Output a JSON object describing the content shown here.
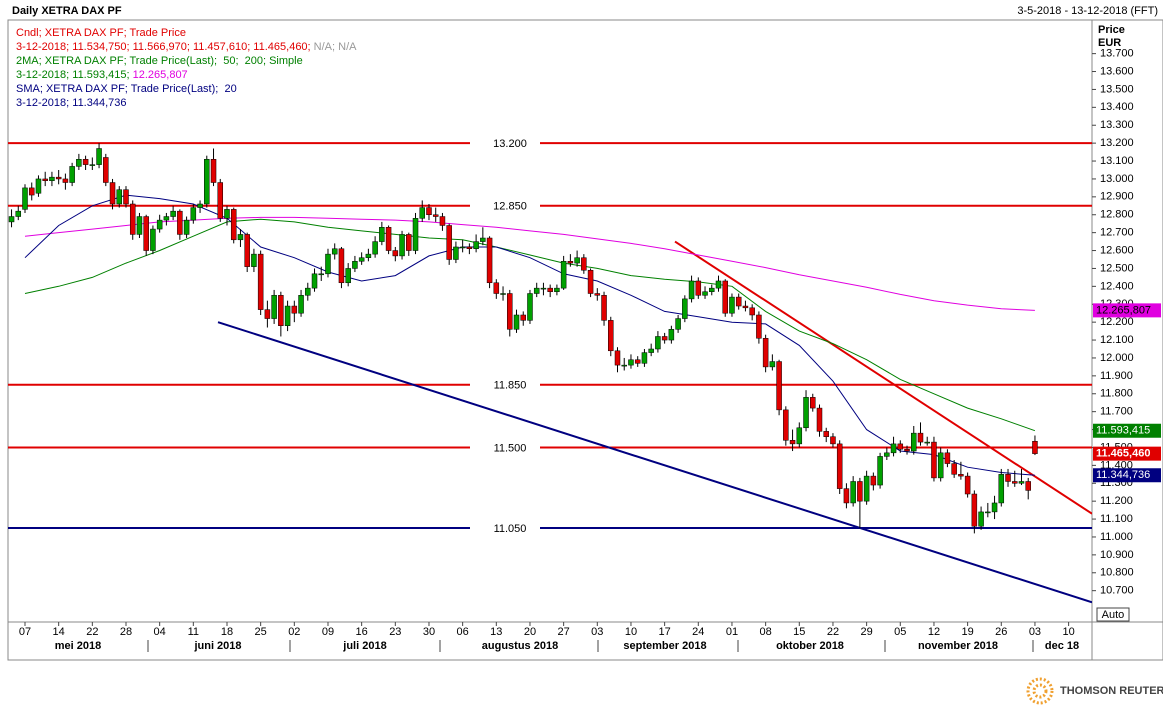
{
  "chart_data": {
    "type": "candlestick",
    "title": "Daily XETRA DAX PF",
    "date_range": "3-5-2018 - 13-12-2018 (FFT)",
    "y_axis_title": [
      "Price",
      "EUR"
    ],
    "auto_label": "Auto",
    "brand": "THOMSON REUTERS",
    "legend": [
      {
        "parts": [
          {
            "text": "Cndl; XETRA DAX PF; Trade Price",
            "color": "#e00000"
          }
        ]
      },
      {
        "parts": [
          {
            "text": "3-12-2018; 11.534,750; 11.566,970; 11.457,610; 11.465,460; ",
            "color": "#e00000"
          },
          {
            "text": "N/A; N/A",
            "color": "#999999"
          }
        ]
      },
      {
        "parts": [
          {
            "text": "2MA; XETRA DAX PF; Trade Price(Last);  50;  200; Simple",
            "color": "#008000"
          }
        ]
      },
      {
        "parts": [
          {
            "text": "3-12-2018; 11.593,415; ",
            "color": "#008000"
          },
          {
            "text": "12.265,807",
            "color": "#e000e0"
          }
        ]
      },
      {
        "parts": [
          {
            "text": "SMA; XETRA DAX PF; Trade Price(Last);  20",
            "color": "#000080"
          }
        ]
      },
      {
        "parts": [
          {
            "text": "3-12-2018; 11.344,736",
            "color": "#000080"
          }
        ]
      }
    ],
    "x_day_labels": [
      "07",
      "14",
      "22",
      "28",
      "04",
      "11",
      "18",
      "25",
      "02",
      "09",
      "16",
      "23",
      "30",
      "06",
      "13",
      "20",
      "27",
      "03",
      "10",
      "17",
      "24",
      "01",
      "08",
      "15",
      "22",
      "29",
      "05",
      "12",
      "19",
      "26",
      "03",
      "10"
    ],
    "x_month_labels": [
      "mei 2018",
      "juni 2018",
      "juli 2018",
      "augustus 2018",
      "september 2018",
      "oktober 2018",
      "november 2018",
      "dec 18"
    ],
    "ylim": [
      10525,
      13832
    ],
    "yticks": [
      {
        "value": 10700,
        "label": "10.700"
      },
      {
        "value": 10800,
        "label": "10.800"
      },
      {
        "value": 10900,
        "label": "10.900"
      },
      {
        "value": 11000,
        "label": "11.000"
      },
      {
        "value": 11100,
        "label": "11.100"
      },
      {
        "value": 11200,
        "label": "11.200"
      },
      {
        "value": 11300,
        "label": "11.300"
      },
      {
        "value": 11400,
        "label": "11.400"
      },
      {
        "value": 11500,
        "label": "11.500"
      },
      {
        "value": 11600,
        "label": "11.600"
      },
      {
        "value": 11700,
        "label": "11.700"
      },
      {
        "value": 11800,
        "label": "11.800"
      },
      {
        "value": 11900,
        "label": "11.900"
      },
      {
        "value": 12000,
        "label": "12.000"
      },
      {
        "value": 12100,
        "label": "12.100"
      },
      {
        "value": 12200,
        "label": "12.200"
      },
      {
        "value": 12300,
        "label": "12.300"
      },
      {
        "value": 12400,
        "label": "12.400"
      },
      {
        "value": 12500,
        "label": "12.500"
      },
      {
        "value": 12600,
        "label": "12.600"
      },
      {
        "value": 12700,
        "label": "12.700"
      },
      {
        "value": 12800,
        "label": "12.800"
      },
      {
        "value": 12900,
        "label": "12.900"
      },
      {
        "value": 13000,
        "label": "13.000"
      },
      {
        "value": 13100,
        "label": "13.100"
      },
      {
        "value": 13200,
        "label": "13.200"
      },
      {
        "value": 13300,
        "label": "13.300"
      },
      {
        "value": 13400,
        "label": "13.400"
      },
      {
        "value": 13500,
        "label": "13.500"
      },
      {
        "value": 13600,
        "label": "13.600"
      },
      {
        "value": 13700,
        "label": "13.700"
      }
    ],
    "up_color": "#00a000",
    "down_color": "#e00000",
    "ohlc": [
      [
        12760,
        12830,
        12730,
        12790
      ],
      [
        12790,
        12850,
        12770,
        12820
      ],
      [
        12830,
        12970,
        12810,
        12950
      ],
      [
        12950,
        12980,
        12880,
        12910
      ],
      [
        12920,
        13020,
        12900,
        13000
      ],
      [
        13000,
        13040,
        12960,
        12990
      ],
      [
        12990,
        13040,
        12960,
        13010
      ],
      [
        13010,
        13050,
        12970,
        13000
      ],
      [
        13000,
        13030,
        12940,
        12980
      ],
      [
        12980,
        13090,
        12960,
        13070
      ],
      [
        13070,
        13140,
        13050,
        13110
      ],
      [
        13110,
        13130,
        13050,
        13080
      ],
      [
        13080,
        13120,
        13050,
        13080
      ],
      [
        13080,
        13200,
        13060,
        13170
      ],
      [
        13120,
        13140,
        12960,
        12980
      ],
      [
        12980,
        13000,
        12830,
        12860
      ],
      [
        12860,
        12960,
        12840,
        12940
      ],
      [
        12940,
        12960,
        12840,
        12860
      ],
      [
        12860,
        12880,
        12660,
        12690
      ],
      [
        12690,
        12810,
        12670,
        12790
      ],
      [
        12790,
        12800,
        12570,
        12600
      ],
      [
        12600,
        12740,
        12580,
        12720
      ],
      [
        12720,
        12800,
        12700,
        12770
      ],
      [
        12770,
        12810,
        12740,
        12790
      ],
      [
        12790,
        12850,
        12770,
        12820
      ],
      [
        12820,
        12830,
        12660,
        12690
      ],
      [
        12690,
        12790,
        12670,
        12770
      ],
      [
        12770,
        12860,
        12750,
        12840
      ],
      [
        12840,
        12880,
        12810,
        12860
      ],
      [
        12860,
        13130,
        12840,
        13110
      ],
      [
        13110,
        13170,
        12960,
        12980
      ],
      [
        12980,
        13000,
        12760,
        12780
      ],
      [
        12780,
        12850,
        12740,
        12830
      ],
      [
        12830,
        12840,
        12640,
        12660
      ],
      [
        12660,
        12720,
        12620,
        12690
      ],
      [
        12690,
        12700,
        12480,
        12510
      ],
      [
        12510,
        12610,
        12480,
        12580
      ],
      [
        12580,
        12600,
        12240,
        12270
      ],
      [
        12270,
        12320,
        12170,
        12220
      ],
      [
        12220,
        12380,
        12190,
        12350
      ],
      [
        12350,
        12370,
        12120,
        12180
      ],
      [
        12180,
        12320,
        12150,
        12290
      ],
      [
        12290,
        12320,
        12200,
        12250
      ],
      [
        12250,
        12380,
        12230,
        12350
      ],
      [
        12350,
        12420,
        12320,
        12390
      ],
      [
        12390,
        12500,
        12370,
        12470
      ],
      [
        12470,
        12510,
        12430,
        12470
      ],
      [
        12470,
        12610,
        12450,
        12580
      ],
      [
        12580,
        12640,
        12550,
        12610
      ],
      [
        12610,
        12620,
        12390,
        12420
      ],
      [
        12420,
        12530,
        12400,
        12500
      ],
      [
        12500,
        12570,
        12480,
        12540
      ],
      [
        12540,
        12590,
        12520,
        12560
      ],
      [
        12560,
        12610,
        12540,
        12580
      ],
      [
        12580,
        12680,
        12560,
        12650
      ],
      [
        12650,
        12760,
        12630,
        12730
      ],
      [
        12730,
        12740,
        12580,
        12600
      ],
      [
        12600,
        12620,
        12540,
        12570
      ],
      [
        12570,
        12710,
        12550,
        12690
      ],
      [
        12690,
        12700,
        12570,
        12600
      ],
      [
        12600,
        12810,
        12580,
        12780
      ],
      [
        12780,
        12880,
        12760,
        12840
      ],
      [
        12840,
        12860,
        12770,
        12800
      ],
      [
        12800,
        12840,
        12760,
        12790
      ],
      [
        12790,
        12810,
        12710,
        12740
      ],
      [
        12740,
        12750,
        12520,
        12550
      ],
      [
        12550,
        12650,
        12530,
        12620
      ],
      [
        12620,
        12660,
        12590,
        12620
      ],
      [
        12620,
        12640,
        12580,
        12610
      ],
      [
        12610,
        12690,
        12590,
        12650
      ],
      [
        12650,
        12730,
        12630,
        12670
      ],
      [
        12670,
        12680,
        12390,
        12420
      ],
      [
        12420,
        12440,
        12330,
        12360
      ],
      [
        12360,
        12400,
        12320,
        12360
      ],
      [
        12360,
        12380,
        12120,
        12160
      ],
      [
        12160,
        12270,
        12140,
        12240
      ],
      [
        12240,
        12260,
        12180,
        12210
      ],
      [
        12210,
        12380,
        12190,
        12360
      ],
      [
        12360,
        12420,
        12340,
        12390
      ],
      [
        12390,
        12420,
        12350,
        12390
      ],
      [
        12390,
        12410,
        12340,
        12370
      ],
      [
        12370,
        12410,
        12350,
        12390
      ],
      [
        12390,
        12570,
        12380,
        12540
      ],
      [
        12540,
        12580,
        12510,
        12530
      ],
      [
        12530,
        12600,
        12510,
        12560
      ],
      [
        12560,
        12580,
        12470,
        12490
      ],
      [
        12490,
        12500,
        12340,
        12360
      ],
      [
        12360,
        12390,
        12320,
        12350
      ],
      [
        12350,
        12370,
        12180,
        12210
      ],
      [
        12210,
        12230,
        12010,
        12040
      ],
      [
        12040,
        12060,
        11920,
        11960
      ],
      [
        11960,
        12000,
        11930,
        11960
      ],
      [
        11960,
        12020,
        11940,
        11990
      ],
      [
        11990,
        12010,
        11950,
        11970
      ],
      [
        11970,
        12050,
        11950,
        12030
      ],
      [
        12030,
        12080,
        12010,
        12050
      ],
      [
        12050,
        12150,
        12030,
        12120
      ],
      [
        12120,
        12140,
        12080,
        12100
      ],
      [
        12100,
        12180,
        12080,
        12160
      ],
      [
        12160,
        12240,
        12140,
        12220
      ],
      [
        12220,
        12350,
        12200,
        12330
      ],
      [
        12330,
        12460,
        12310,
        12430
      ],
      [
        12430,
        12450,
        12330,
        12350
      ],
      [
        12350,
        12400,
        12330,
        12370
      ],
      [
        12370,
        12410,
        12350,
        12390
      ],
      [
        12390,
        12460,
        12370,
        12430
      ],
      [
        12430,
        12440,
        12230,
        12250
      ],
      [
        12250,
        12360,
        12230,
        12340
      ],
      [
        12340,
        12360,
        12270,
        12290
      ],
      [
        12290,
        12320,
        12260,
        12280
      ],
      [
        12280,
        12300,
        12210,
        12240
      ],
      [
        12240,
        12260,
        12080,
        12110
      ],
      [
        12110,
        12130,
        11920,
        11950
      ],
      [
        11950,
        12020,
        11930,
        11980
      ],
      [
        11980,
        11990,
        11680,
        11710
      ],
      [
        11710,
        11730,
        11510,
        11540
      ],
      [
        11540,
        11600,
        11480,
        11520
      ],
      [
        11520,
        11640,
        11500,
        11610
      ],
      [
        11610,
        11820,
        11590,
        11780
      ],
      [
        11780,
        11800,
        11700,
        11720
      ],
      [
        11720,
        11740,
        11560,
        11590
      ],
      [
        11590,
        11610,
        11530,
        11560
      ],
      [
        11560,
        11580,
        11500,
        11520
      ],
      [
        11520,
        11540,
        11240,
        11270
      ],
      [
        11270,
        11300,
        11160,
        11190
      ],
      [
        11190,
        11340,
        11170,
        11310
      ],
      [
        11310,
        11330,
        11050,
        11200
      ],
      [
        11200,
        11370,
        11180,
        11340
      ],
      [
        11340,
        11360,
        11260,
        11290
      ],
      [
        11290,
        11470,
        11270,
        11450
      ],
      [
        11450,
        11500,
        11430,
        11470
      ],
      [
        11470,
        11560,
        11450,
        11520
      ],
      [
        11520,
        11540,
        11470,
        11490
      ],
      [
        11490,
        11510,
        11460,
        11480
      ],
      [
        11480,
        11620,
        11460,
        11580
      ],
      [
        11580,
        11640,
        11510,
        11530
      ],
      [
        11530,
        11560,
        11510,
        11530
      ],
      [
        11530,
        11560,
        11310,
        11330
      ],
      [
        11330,
        11500,
        11310,
        11470
      ],
      [
        11470,
        11490,
        11390,
        11410
      ],
      [
        11410,
        11430,
        11330,
        11350
      ],
      [
        11350,
        11420,
        11320,
        11340
      ],
      [
        11340,
        11360,
        11220,
        11240
      ],
      [
        11240,
        11260,
        11020,
        11060
      ],
      [
        11060,
        11170,
        11040,
        11140
      ],
      [
        11140,
        11190,
        11110,
        11140
      ],
      [
        11140,
        11230,
        11100,
        11190
      ],
      [
        11190,
        11380,
        11170,
        11350
      ],
      [
        11350,
        11380,
        11280,
        11310
      ],
      [
        11310,
        11370,
        11280,
        11300
      ],
      [
        11300,
        11380,
        11290,
        11310
      ],
      [
        11310,
        11330,
        11210,
        11260
      ],
      [
        11534.75,
        11566.97,
        11457.61,
        11465.46
      ]
    ],
    "series": [
      {
        "name": "2MA 200",
        "color": "#e000e0",
        "values": [
          12680,
          12700,
          12720,
          12740,
          12760,
          12770,
          12780,
          12785,
          12785,
          12780,
          12775,
          12770,
          12760,
          12745,
          12730,
          12710,
          12690,
          12665,
          12640,
          12610,
          12575,
          12540,
          12505,
          12465,
          12430,
          12395,
          12355,
          12320,
          12295,
          12275,
          12265.807
        ]
      },
      {
        "name": "2MA 50",
        "color": "#008000",
        "values": [
          12360,
          12400,
          12450,
          12530,
          12600,
          12680,
          12760,
          12775,
          12760,
          12730,
          12710,
          12690,
          12670,
          12660,
          12620,
          12575,
          12530,
          12500,
          12460,
          12440,
          12425,
          12400,
          12260,
          12150,
          12080,
          11990,
          11880,
          11800,
          11720,
          11660,
          11593.415
        ]
      },
      {
        "name": "SMA 20",
        "color": "#000080",
        "values": [
          12560,
          12740,
          12850,
          12910,
          12890,
          12860,
          12780,
          12620,
          12560,
          12480,
          12430,
          12460,
          12570,
          12620,
          12620,
          12560,
          12470,
          12430,
          12350,
          12260,
          12230,
          12200,
          12190,
          12070,
          11870,
          11600,
          11480,
          11460,
          11390,
          11360,
          11344.736
        ]
      }
    ],
    "last_value_boxes": [
      {
        "value": 12265.807,
        "label": "12.265,807",
        "color": "#e000e0",
        "text_color": "#000000"
      },
      {
        "value": 11593.415,
        "label": "11.593,415",
        "color": "#008000",
        "text_color": "#ffffff"
      },
      {
        "value": 11465.46,
        "label": "11.465,460",
        "color": "#e00000",
        "text_color": "#ffffff"
      },
      {
        "value": 11344.736,
        "label": "11.344,736",
        "color": "#000080",
        "text_color": "#ffffff"
      }
    ],
    "levels": [
      {
        "value": 13200,
        "label": "13.200",
        "color": "#e00000"
      },
      {
        "value": 12850,
        "label": "12.850",
        "color": "#e00000"
      },
      {
        "value": 11850,
        "label": "11.850",
        "color": "#e00000"
      },
      {
        "value": 11500,
        "label": "11.500",
        "color": "#e00000"
      },
      {
        "value": 11050,
        "label": "11.050",
        "color": "#000080"
      }
    ],
    "trendlines": [
      {
        "color": "#e00000",
        "values": [
          12650,
          11130
        ]
      },
      {
        "color": "#000080",
        "values": [
          12200,
          10635
        ]
      }
    ]
  }
}
